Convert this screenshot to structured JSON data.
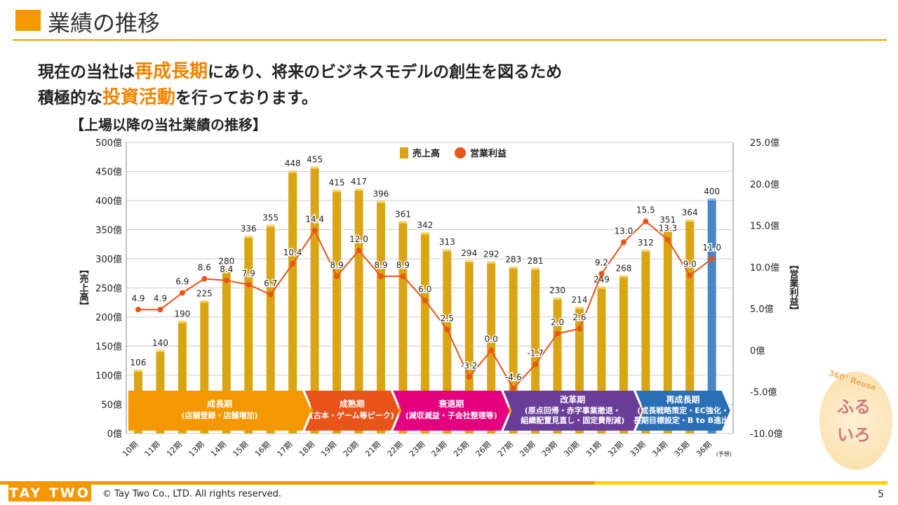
{
  "header": {
    "title": "業績の推移"
  },
  "lead": {
    "line1_a": "現在の当社は",
    "line1_hl": "再成長期",
    "line1_b": "にあり、将来のビジネスモデルの創生を図るため",
    "line2_a": "積極的な",
    "line2_hl": "投資活動",
    "line2_b": "を行っております。"
  },
  "subtitle": "【上場以降の当社業績の推移】",
  "footer": {
    "logo": "TAY TWO",
    "copyright": "© Tay Two Co., LTD. All rights reserved.",
    "page": "5"
  },
  "mascot": {
    "text": "ふるいろ",
    "ring": "360° Reuse"
  },
  "chart_data": {
    "type": "bar+line",
    "categories": [
      "10期",
      "11期",
      "12期",
      "13期",
      "14期",
      "15期",
      "16期",
      "17期",
      "18期",
      "19期",
      "20期",
      "21期",
      "22期",
      "23期",
      "24期",
      "25期",
      "26期",
      "27期",
      "28期",
      "29期",
      "30期",
      "31期",
      "32期",
      "33期",
      "34期",
      "35期",
      "36期"
    ],
    "forecast_note": "(予想)",
    "series": [
      {
        "name": "売上高",
        "type": "bar",
        "axis": "left",
        "color": "#d9a514",
        "forecast_color": "#4a86c5",
        "values": [
          106,
          140,
          190,
          225,
          280,
          336,
          355,
          448,
          455,
          415,
          417,
          396,
          361,
          342,
          313,
          294,
          292,
          283,
          281,
          230,
          214,
          249,
          268,
          312,
          351,
          364,
          400
        ]
      },
      {
        "name": "営業利益",
        "type": "line",
        "axis": "right",
        "color": "#e8541a",
        "values": [
          4.9,
          4.9,
          6.9,
          8.6,
          8.4,
          7.9,
          6.7,
          10.4,
          14.4,
          8.9,
          12.0,
          8.9,
          8.9,
          6.0,
          2.5,
          -3.2,
          0.0,
          -4.6,
          -1.7,
          2.0,
          2.6,
          9.2,
          13.0,
          15.5,
          13.3,
          9.0,
          11.0
        ]
      }
    ],
    "ylabel_left": "【売上高】",
    "ylabel_right": "【営業利益】",
    "ylim_left": [
      0,
      500
    ],
    "yticks_left": [
      "0億",
      "50億",
      "100億",
      "150億",
      "200億",
      "250億",
      "300億",
      "350億",
      "400億",
      "450億",
      "500億"
    ],
    "ylim_right": [
      -10,
      25
    ],
    "yticks_right": [
      "-10.0億",
      "-5.0億",
      "0億",
      "5.0億",
      "10.0億",
      "15.0億",
      "20.0億",
      "25.0億"
    ],
    "grid": true,
    "legend": "top-center",
    "phases": [
      {
        "label": "成長期",
        "detail": [
          "(店舗登録・店舗増加)"
        ],
        "from": 0,
        "to": 7,
        "color": "#f39800"
      },
      {
        "label": "成熟期",
        "detail": [
          "(古本・ゲーム等ピーク)"
        ],
        "from": 8,
        "to": 11,
        "color": "#e8541a"
      },
      {
        "label": "衰退期",
        "detail": [
          "(減収減益・子会社整理等)"
        ],
        "from": 12,
        "to": 16,
        "color": "#e4007f"
      },
      {
        "label": "改革期",
        "detail": [
          "(原点回帰・赤字事業撤退・",
          "組織配置見直し・固定費削減)"
        ],
        "from": 17,
        "to": 22,
        "color": "#6a3d99"
      },
      {
        "label": "再成長期",
        "detail": [
          "(成長戦略策定・EC強化・",
          "長期目標設定・B to B進出)"
        ],
        "from": 23,
        "to": 26,
        "color": "#2a6fb5"
      }
    ]
  }
}
